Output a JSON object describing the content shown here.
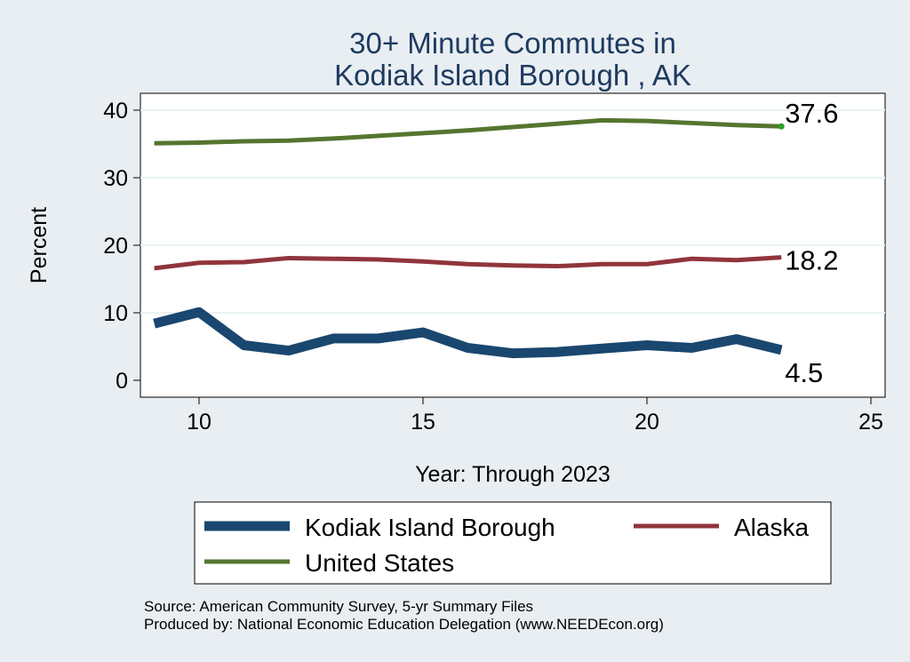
{
  "chart_data": {
    "type": "line",
    "title": [
      "30+ Minute Commutes in",
      "Kodiak Island Borough , AK"
    ],
    "xlabel": "Year: Through 2023",
    "ylabel": "Percent",
    "xlim": [
      8.7,
      25
    ],
    "ylim": [
      -1,
      42
    ],
    "xticks": [
      10,
      15,
      20,
      25
    ],
    "yticks": [
      0,
      10,
      20,
      30,
      40
    ],
    "grid": true,
    "legend_position": "bottom",
    "x": [
      9,
      10,
      11,
      12,
      13,
      14,
      15,
      16,
      17,
      18,
      19,
      20,
      21,
      22,
      23
    ],
    "series": [
      {
        "name": "Kodiak Island Borough",
        "color": "#1a476f",
        "values": [
          8.4,
          10.1,
          5.2,
          4.4,
          6.2,
          6.2,
          7.1,
          4.8,
          4.0,
          4.2,
          4.7,
          5.2,
          4.8,
          6.1,
          4.5
        ],
        "end_label": "4.5"
      },
      {
        "name": "Alaska",
        "color": "#90353b",
        "values": [
          16.6,
          17.4,
          17.5,
          18.1,
          18.0,
          17.9,
          17.6,
          17.2,
          17.0,
          16.9,
          17.2,
          17.2,
          18.0,
          17.8,
          18.2
        ],
        "end_label": "18.2"
      },
      {
        "name": "United States",
        "color": "#55752f",
        "values": [
          35.1,
          35.2,
          35.4,
          35.5,
          35.8,
          36.2,
          36.6,
          37.0,
          37.5,
          38.0,
          38.5,
          38.4,
          38.1,
          37.8,
          37.6
        ],
        "end_label": "37.6"
      }
    ],
    "notes": [
      "Source: American Community Survey, 5-yr Summary Files",
      "Produced by: National Economic Education Delegation (www.NEEDEcon.org)"
    ]
  }
}
